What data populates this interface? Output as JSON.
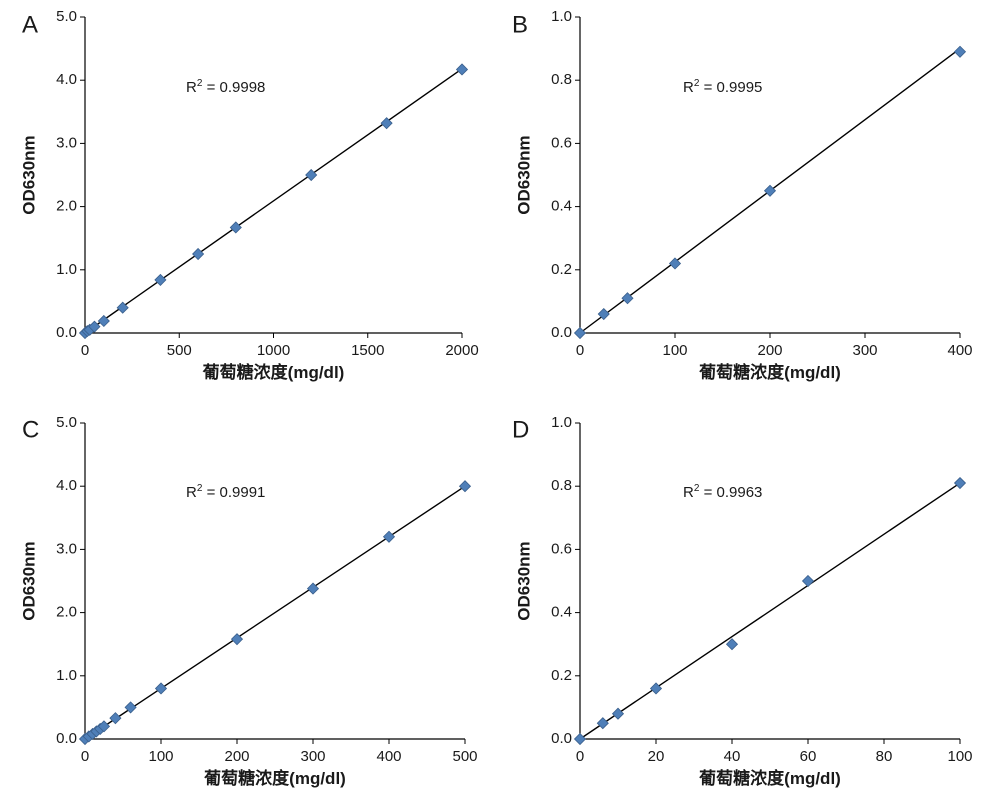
{
  "chart_data": [
    {
      "type": "scatter",
      "panel": "A",
      "xlabel": "葡萄糖浓度(mg/dl)",
      "ylabel": "OD630nm",
      "xlim": [
        0,
        2000
      ],
      "ylim": [
        0,
        5
      ],
      "xticks": [
        "0",
        "500",
        "1000",
        "1500",
        "2000"
      ],
      "yticks": [
        "0.0",
        "1.0",
        "2.0",
        "3.0",
        "4.0",
        "5.0"
      ],
      "annotation": {
        "prefix": "R",
        "sup": "2",
        "suffix": " = 0.9998"
      },
      "fit": [
        [
          0,
          0.0
        ],
        [
          2000,
          4.18
        ]
      ],
      "points": [
        [
          0,
          0.0
        ],
        [
          12.5,
          0.03
        ],
        [
          25,
          0.05
        ],
        [
          50,
          0.1
        ],
        [
          100,
          0.19
        ],
        [
          200,
          0.4
        ],
        [
          400,
          0.84
        ],
        [
          600,
          1.25
        ],
        [
          800,
          1.67
        ],
        [
          1200,
          2.5
        ],
        [
          1600,
          3.32
        ],
        [
          2000,
          4.17
        ]
      ],
      "grid": false,
      "legend": "none"
    },
    {
      "type": "scatter",
      "panel": "B",
      "xlabel": "葡萄糖浓度(mg/dl)",
      "ylabel": "OD630nm",
      "xlim": [
        0,
        400
      ],
      "ylim": [
        0,
        1
      ],
      "xticks": [
        "0",
        "100",
        "200",
        "300",
        "400"
      ],
      "yticks": [
        "0.0",
        "0.2",
        "0.4",
        "0.6",
        "0.8",
        "1.0"
      ],
      "annotation": {
        "prefix": "R",
        "sup": "2",
        "suffix": " = 0.9995"
      },
      "fit": [
        [
          0,
          0.0
        ],
        [
          400,
          0.9
        ]
      ],
      "points": [
        [
          0,
          0.0
        ],
        [
          25,
          0.06
        ],
        [
          50,
          0.11
        ],
        [
          100,
          0.22
        ],
        [
          200,
          0.45
        ],
        [
          400,
          0.89
        ]
      ],
      "grid": false,
      "legend": "none"
    },
    {
      "type": "scatter",
      "panel": "C",
      "xlabel": "葡萄糖浓度(mg/dl)",
      "ylabel": "OD630nm",
      "xlim": [
        0,
        500
      ],
      "ylim": [
        0,
        5
      ],
      "xticks": [
        "0",
        "100",
        "200",
        "300",
        "400",
        "500"
      ],
      "yticks": [
        "0.0",
        "1.0",
        "2.0",
        "3.0",
        "4.0",
        "5.0"
      ],
      "annotation": {
        "prefix": "R",
        "sup": "2",
        "suffix": " = 0.9991"
      },
      "fit": [
        [
          0,
          0.0
        ],
        [
          500,
          4.0
        ]
      ],
      "points": [
        [
          0,
          0.0
        ],
        [
          5,
          0.04
        ],
        [
          10,
          0.08
        ],
        [
          15,
          0.12
        ],
        [
          20,
          0.16
        ],
        [
          25,
          0.2
        ],
        [
          40,
          0.33
        ],
        [
          60,
          0.5
        ],
        [
          100,
          0.8
        ],
        [
          200,
          1.58
        ],
        [
          300,
          2.38
        ],
        [
          400,
          3.2
        ],
        [
          500,
          4.0
        ]
      ],
      "grid": false,
      "legend": "none"
    },
    {
      "type": "scatter",
      "panel": "D",
      "xlabel": "葡萄糖浓度(mg/dl)",
      "ylabel": "OD630nm",
      "xlim": [
        0,
        100
      ],
      "ylim": [
        0,
        1
      ],
      "xticks": [
        "0",
        "20",
        "40",
        "60",
        "80",
        "100"
      ],
      "yticks": [
        "0.0",
        "0.2",
        "0.4",
        "0.6",
        "0.8",
        "1.0"
      ],
      "annotation": {
        "prefix": "R",
        "sup": "2",
        "suffix": " = 0.9963"
      },
      "fit": [
        [
          0,
          0.0
        ],
        [
          100,
          0.81
        ]
      ],
      "points": [
        [
          0,
          0.0
        ],
        [
          6,
          0.05
        ],
        [
          10,
          0.08
        ],
        [
          20,
          0.16
        ],
        [
          40,
          0.3
        ],
        [
          60,
          0.5
        ],
        [
          100,
          0.81
        ]
      ],
      "grid": false,
      "legend": "none"
    }
  ]
}
